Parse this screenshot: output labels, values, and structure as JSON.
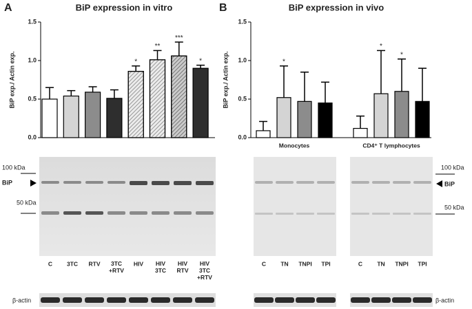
{
  "panels": {
    "a": "A",
    "b": "B"
  },
  "chart_data": [
    {
      "type": "bar",
      "title": "BiP expression in vitro",
      "y_label": "BiP exp./ Actin exp.",
      "categories": [
        "C",
        "3TC",
        "RTV",
        "3TC +RTV",
        "HIV",
        "HIV 3TC",
        "HIV RTV",
        "HIV 3TC +RTV"
      ],
      "values": [
        0.5,
        0.54,
        0.59,
        0.51,
        0.86,
        1.01,
        1.06,
        0.9
      ],
      "errors": [
        0.15,
        0.07,
        0.07,
        0.11,
        0.07,
        0.12,
        0.18,
        0.04
      ],
      "annotations": [
        null,
        null,
        null,
        null,
        "*",
        "**",
        "***",
        "*"
      ],
      "colors": [
        "#ffffff",
        "#d4d4d4",
        "#8c8c8c",
        "#2e2e2e",
        "#d4d4d4",
        "#d4d4d4",
        "#8c8c8c",
        "#2e2e2e"
      ],
      "hatched": [
        false,
        false,
        false,
        false,
        true,
        true,
        true,
        false
      ],
      "ylim": [
        0,
        1.5
      ],
      "yticks": [
        {
          "value": 0,
          "label": "0.0"
        },
        0.5,
        {
          "value": 1,
          "label": "1.0"
        },
        1.5
      ],
      "blot_labels": {
        "upper": "100 kDa",
        "target": "BiP",
        "lower": "50 kDa",
        "loading": "β-actin"
      }
    },
    {
      "type": "bar",
      "title": "BiP expression in vivo",
      "y_label": "BiP exp./ Actin exp.",
      "categories": [
        "C",
        "TN",
        "TNPI",
        "TPI",
        "C",
        "TN",
        "TNPI",
        "TPI"
      ],
      "groups": [
        "Monocytes",
        "CD4⁺ T lymphocytes"
      ],
      "values": [
        0.09,
        0.52,
        0.47,
        0.45,
        0.12,
        0.57,
        0.6,
        0.47
      ],
      "errors": [
        0.12,
        0.41,
        0.38,
        0.27,
        0.16,
        0.56,
        0.42,
        0.43
      ],
      "annotations": [
        null,
        "*",
        null,
        null,
        null,
        "*",
        "*",
        null
      ],
      "colors": [
        "#ffffff",
        "#d4d4d4",
        "#8c8c8c",
        "#000000",
        "#ffffff",
        "#d4d4d4",
        "#8c8c8c",
        "#000000"
      ],
      "ylim": [
        0,
        1.5
      ],
      "yticks": [
        {
          "value": 0,
          "label": "0.0"
        },
        0.5,
        {
          "value": 1,
          "label": "1.0"
        },
        1.5
      ],
      "blot_labels": {
        "upper": "100 kDa",
        "target": "BiP",
        "lower": "50 kDa",
        "loading": "β-actin"
      }
    }
  ]
}
